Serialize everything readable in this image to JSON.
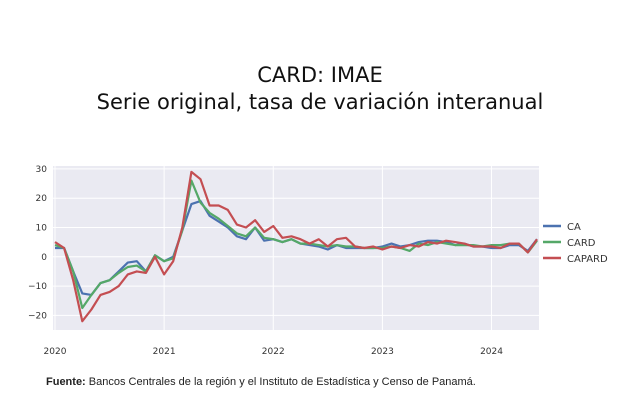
{
  "header": {
    "title": "CARD: IMAE",
    "subtitle": "Serie original, tasa de variación interanual"
  },
  "source": {
    "label": "Fuente:",
    "text": "Bancos Centrales de la región y el Instituto de Estadística y Censo de Panamá."
  },
  "chart_data": {
    "type": "line",
    "x_ticks": [
      "2020",
      "2021",
      "2022",
      "2023",
      "2024"
    ],
    "y_ticks": [
      30,
      20,
      10,
      0,
      -10,
      -20
    ],
    "ylim": [
      -25,
      31
    ],
    "grid": true,
    "legend_position": "right",
    "series": [
      {
        "name": "CA",
        "color": "#4c72b0",
        "values": [
          3,
          3,
          -5,
          -12.5,
          -13,
          -9,
          -8,
          -5,
          -2,
          -1.5,
          -5,
          0.5,
          -1.5,
          0,
          9,
          18,
          19,
          14,
          12,
          10,
          7,
          6,
          10,
          5.5,
          6,
          5,
          6,
          4.5,
          4,
          3.5,
          2.5,
          4,
          3,
          3,
          3,
          3,
          3.5,
          4.5,
          3.5,
          4,
          5,
          5.5,
          5.5,
          5,
          4,
          4.5,
          3.5,
          3.5,
          3,
          3,
          4,
          4,
          2,
          6
        ]
      },
      {
        "name": "CARD",
        "color": "#55a868",
        "values": [
          4,
          3,
          -5,
          -17.5,
          -13,
          -9,
          -8,
          -5.5,
          -3.5,
          -3,
          -5,
          0.5,
          -1.5,
          -0.5,
          9,
          26,
          18.5,
          15,
          13,
          10.5,
          8,
          7,
          10,
          6.5,
          6,
          5,
          6,
          4.5,
          4.5,
          4,
          3.5,
          4,
          3.5,
          3.5,
          3,
          3,
          3,
          3.5,
          3,
          2,
          4.5,
          4,
          5,
          4.5,
          4,
          4,
          4,
          3.5,
          4,
          4,
          4.5,
          4.5,
          1.5,
          5.5
        ]
      },
      {
        "name": "CAPARD",
        "color": "#c44e52",
        "values": [
          5,
          3,
          -8,
          -22,
          -18,
          -13,
          -12,
          -10,
          -6,
          -5,
          -5.5,
          0,
          -6,
          -1.5,
          10,
          29,
          26.5,
          17.5,
          17.5,
          16,
          11,
          10,
          12.5,
          8.5,
          10.5,
          6.5,
          7,
          6,
          4.5,
          6,
          3.5,
          6,
          6.5,
          3.5,
          3,
          3.5,
          2.5,
          3.5,
          3,
          4,
          3.5,
          5,
          4.5,
          5.5,
          5,
          4.5,
          3.5,
          3.5,
          3.5,
          3,
          4.5,
          4.5,
          1.5,
          6
        ]
      }
    ]
  }
}
